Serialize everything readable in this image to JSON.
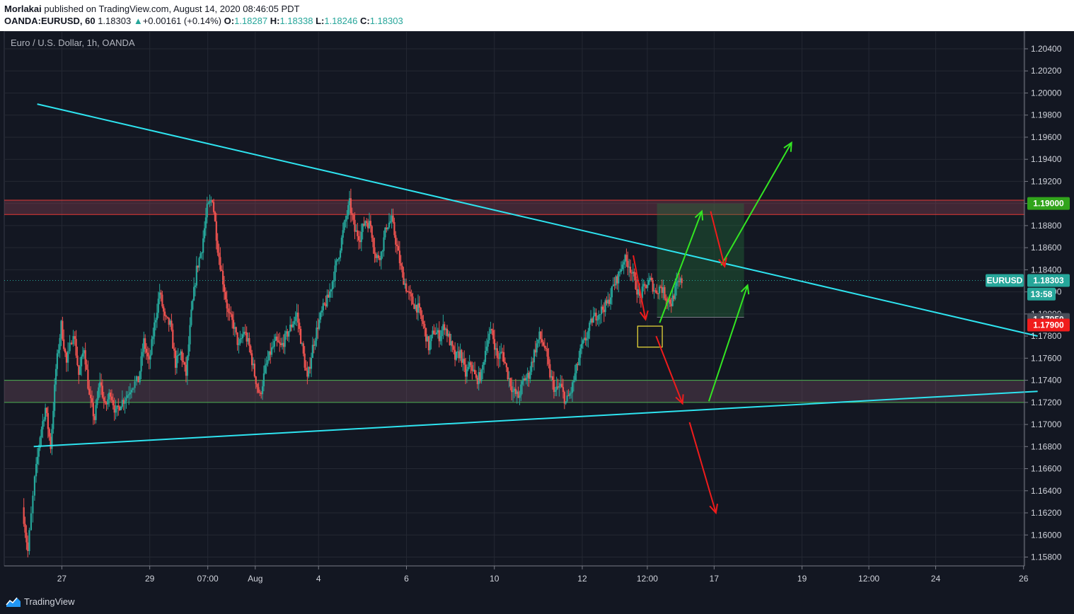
{
  "header": {
    "author": "Morlakai",
    "published_text": "published on TradingView.com, August 14, 2020 08:46:05 PDT",
    "symbol": "OANDA:EURUSD, 60",
    "last": "1.18303",
    "arrow": "▲",
    "change": "+0.00161 (+0.14%)",
    "o_label": "O:",
    "o_value": "1.18287",
    "h_label": "H:",
    "h_value": "1.18338",
    "l_label": "L:",
    "l_value": "1.18246",
    "c_label": "C:",
    "c_value": "1.18303"
  },
  "footer": {
    "brand": "TradingView",
    "logo_icon": "tradingview-logo-icon"
  },
  "colors": {
    "background": "#131722",
    "grid": "#242833",
    "bull": "#26a69a",
    "bear": "#ef5350",
    "trendline": "#2ee4f0",
    "green_arrow": "#33e622",
    "red_arrow": "#ef1c1c",
    "yellow_box": "#f5e43b"
  },
  "chart_data": {
    "type": "candlestick",
    "legend": "Euro / U.S. Dollar, 1h, OANDA",
    "ylim": [
      1.1572,
      1.2056
    ],
    "y_ticks": [
      "1.20400",
      "1.20200",
      "1.20000",
      "1.19800",
      "1.19600",
      "1.19400",
      "1.19200",
      "1.19000",
      "1.18800",
      "1.18600",
      "1.18400",
      "1.18200",
      "1.18000",
      "1.17800",
      "1.17600",
      "1.17400",
      "1.17200",
      "1.17000",
      "1.16800",
      "1.16600",
      "1.16400",
      "1.16200",
      "1.16000",
      "1.15800"
    ],
    "x_ticks": [
      {
        "label": "27",
        "t": 0.5
      },
      {
        "label": "29",
        "t": 5.5
      },
      {
        "label": "07:00",
        "t": 8.8
      },
      {
        "label": "Aug",
        "t": 11.5
      },
      {
        "label": "4",
        "t": 15.1
      },
      {
        "label": "6",
        "t": 20.1
      },
      {
        "label": "10",
        "t": 25.1
      },
      {
        "label": "12",
        "t": 30.1
      },
      {
        "label": "12:00",
        "t": 33.8
      },
      {
        "label": "17",
        "t": 37.6
      },
      {
        "label": "19",
        "t": 42.6
      },
      {
        "label": "12:00",
        "t": 46.4
      },
      {
        "label": "24",
        "t": 50.2
      },
      {
        "label": "26",
        "t": 55.2
      }
    ],
    "path": [
      [
        -1.7,
        1.1625
      ],
      [
        -1.4,
        1.1585
      ],
      [
        -1.0,
        1.165
      ],
      [
        -0.7,
        1.169
      ],
      [
        -0.4,
        1.1715
      ],
      [
        -0.1,
        1.168
      ],
      [
        0.2,
        1.175
      ],
      [
        0.5,
        1.179
      ],
      [
        0.8,
        1.1755
      ],
      [
        1.2,
        1.1785
      ],
      [
        1.5,
        1.1745
      ],
      [
        1.8,
        1.177
      ],
      [
        2.1,
        1.1725
      ],
      [
        2.4,
        1.1705
      ],
      [
        2.7,
        1.174
      ],
      [
        3.0,
        1.1715
      ],
      [
        3.3,
        1.173
      ],
      [
        3.6,
        1.171
      ],
      [
        3.9,
        1.172
      ],
      [
        4.2,
        1.1725
      ],
      [
        4.5,
        1.1735
      ],
      [
        4.9,
        1.174
      ],
      [
        5.2,
        1.1775
      ],
      [
        5.5,
        1.1755
      ],
      [
        5.8,
        1.179
      ],
      [
        6.1,
        1.182
      ],
      [
        6.4,
        1.1795
      ],
      [
        6.7,
        1.179
      ],
      [
        7.0,
        1.1755
      ],
      [
        7.3,
        1.1765
      ],
      [
        7.6,
        1.1745
      ],
      [
        7.9,
        1.18
      ],
      [
        8.2,
        1.184
      ],
      [
        8.5,
        1.186
      ],
      [
        8.8,
        1.1895
      ],
      [
        9.1,
        1.1905
      ],
      [
        9.4,
        1.186
      ],
      [
        9.7,
        1.183
      ],
      [
        10.0,
        1.18
      ],
      [
        10.3,
        1.179
      ],
      [
        10.6,
        1.177
      ],
      [
        10.9,
        1.1785
      ],
      [
        11.2,
        1.177
      ],
      [
        11.5,
        1.1745
      ],
      [
        11.8,
        1.1725
      ],
      [
        12.1,
        1.175
      ],
      [
        12.4,
        1.1765
      ],
      [
        12.7,
        1.1775
      ],
      [
        13.0,
        1.177
      ],
      [
        13.3,
        1.178
      ],
      [
        13.6,
        1.179
      ],
      [
        13.9,
        1.18
      ],
      [
        14.2,
        1.177
      ],
      [
        14.5,
        1.174
      ],
      [
        14.8,
        1.177
      ],
      [
        15.1,
        1.179
      ],
      [
        15.4,
        1.1805
      ],
      [
        15.7,
        1.1815
      ],
      [
        16.0,
        1.1835
      ],
      [
        16.3,
        1.1855
      ],
      [
        16.6,
        1.188
      ],
      [
        16.9,
        1.19
      ],
      [
        17.2,
        1.1875
      ],
      [
        17.5,
        1.187
      ],
      [
        17.8,
        1.1885
      ],
      [
        18.1,
        1.188
      ],
      [
        18.4,
        1.185
      ],
      [
        18.7,
        1.1855
      ],
      [
        19.0,
        1.188
      ],
      [
        19.3,
        1.1885
      ],
      [
        19.6,
        1.186
      ],
      [
        19.9,
        1.1835
      ],
      [
        20.2,
        1.182
      ],
      [
        20.5,
        1.181
      ],
      [
        20.8,
        1.1805
      ],
      [
        21.1,
        1.179
      ],
      [
        21.4,
        1.177
      ],
      [
        21.7,
        1.1785
      ],
      [
        22.0,
        1.178
      ],
      [
        22.3,
        1.179
      ],
      [
        22.6,
        1.1775
      ],
      [
        22.9,
        1.176
      ],
      [
        23.2,
        1.1765
      ],
      [
        23.5,
        1.1745
      ],
      [
        23.8,
        1.1755
      ],
      [
        24.1,
        1.174
      ],
      [
        24.4,
        1.1745
      ],
      [
        24.7,
        1.1775
      ],
      [
        25.0,
        1.1785
      ],
      [
        25.3,
        1.176
      ],
      [
        25.6,
        1.1765
      ],
      [
        25.9,
        1.1745
      ],
      [
        26.2,
        1.173
      ],
      [
        26.5,
        1.1725
      ],
      [
        26.8,
        1.174
      ],
      [
        27.1,
        1.1745
      ],
      [
        27.4,
        1.1765
      ],
      [
        27.7,
        1.178
      ],
      [
        28.0,
        1.177
      ],
      [
        28.3,
        1.1745
      ],
      [
        28.6,
        1.173
      ],
      [
        28.9,
        1.1735
      ],
      [
        29.2,
        1.172
      ],
      [
        29.5,
        1.173
      ],
      [
        29.8,
        1.175
      ],
      [
        30.1,
        1.177
      ],
      [
        30.4,
        1.178
      ],
      [
        30.7,
        1.1795
      ],
      [
        31.0,
        1.18
      ],
      [
        31.3,
        1.1805
      ],
      [
        31.6,
        1.181
      ],
      [
        31.9,
        1.1825
      ],
      [
        32.2,
        1.1835
      ],
      [
        32.5,
        1.185
      ],
      [
        32.8,
        1.1845
      ],
      [
        33.1,
        1.183
      ],
      [
        33.4,
        1.1815
      ],
      [
        33.7,
        1.1825
      ],
      [
        34.0,
        1.183
      ],
      [
        34.3,
        1.182
      ],
      [
        34.6,
        1.1825
      ],
      [
        34.9,
        1.1815
      ],
      [
        35.2,
        1.181
      ],
      [
        35.5,
        1.1825
      ],
      [
        35.8,
        1.183
      ]
    ],
    "resistance_zone": [
      1.189,
      1.1903
    ],
    "support_zone": [
      1.172,
      1.174
    ],
    "trendlines": [
      {
        "from": [
          -0.9,
          1.199
        ],
        "to": [
          56.0,
          1.178
        ]
      },
      {
        "from": [
          -1.1,
          1.168
        ],
        "to": [
          56.0,
          1.173
        ]
      }
    ],
    "target_box": {
      "t0": 34.35,
      "t1": 39.3,
      "y0": 1.1797,
      "y1": 1.19
    },
    "stop_box": {
      "t0": 33.25,
      "t1": 34.65,
      "y0": 1.177,
      "y1": 1.1789
    },
    "green_arrows": [
      {
        "from": [
          34.5,
          1.1792
        ],
        "to": [
          36.9,
          1.1893
        ]
      },
      {
        "from": [
          38.0,
          1.1844
        ],
        "to": [
          42.0,
          1.1955
        ]
      },
      {
        "from": [
          37.3,
          1.1721
        ],
        "to": [
          39.5,
          1.1826
        ]
      }
    ],
    "red_arrows": [
      {
        "from": [
          33.0,
          1.1853
        ],
        "to": [
          33.7,
          1.1795
        ]
      },
      {
        "from": [
          34.3,
          1.178
        ],
        "to": [
          35.8,
          1.1719
        ]
      },
      {
        "from": [
          37.4,
          1.1893
        ],
        "to": [
          38.2,
          1.1843
        ]
      },
      {
        "from": [
          36.2,
          1.1702
        ],
        "to": [
          37.7,
          1.162
        ]
      }
    ],
    "price_badges": [
      {
        "label": "",
        "value": "1.19000",
        "y": 1.19,
        "bg": "#31a41b",
        "fg": "#ffffff"
      },
      {
        "label": "EURUSD",
        "value": "1.18303",
        "y": 1.18303,
        "bg": "#26a69a",
        "fg": "#ffffff"
      },
      {
        "label": "",
        "value": "13:58",
        "y": 1.1818,
        "bg": "#26a69a",
        "fg": "#ffffff"
      },
      {
        "label": "",
        "value": "1.17950",
        "y": 1.1795,
        "bg": "#4a4e59",
        "fg": "#ffffff"
      },
      {
        "label": "",
        "value": "1.17900",
        "y": 1.179,
        "bg": "#f01c1c",
        "fg": "#ffffff"
      }
    ]
  }
}
